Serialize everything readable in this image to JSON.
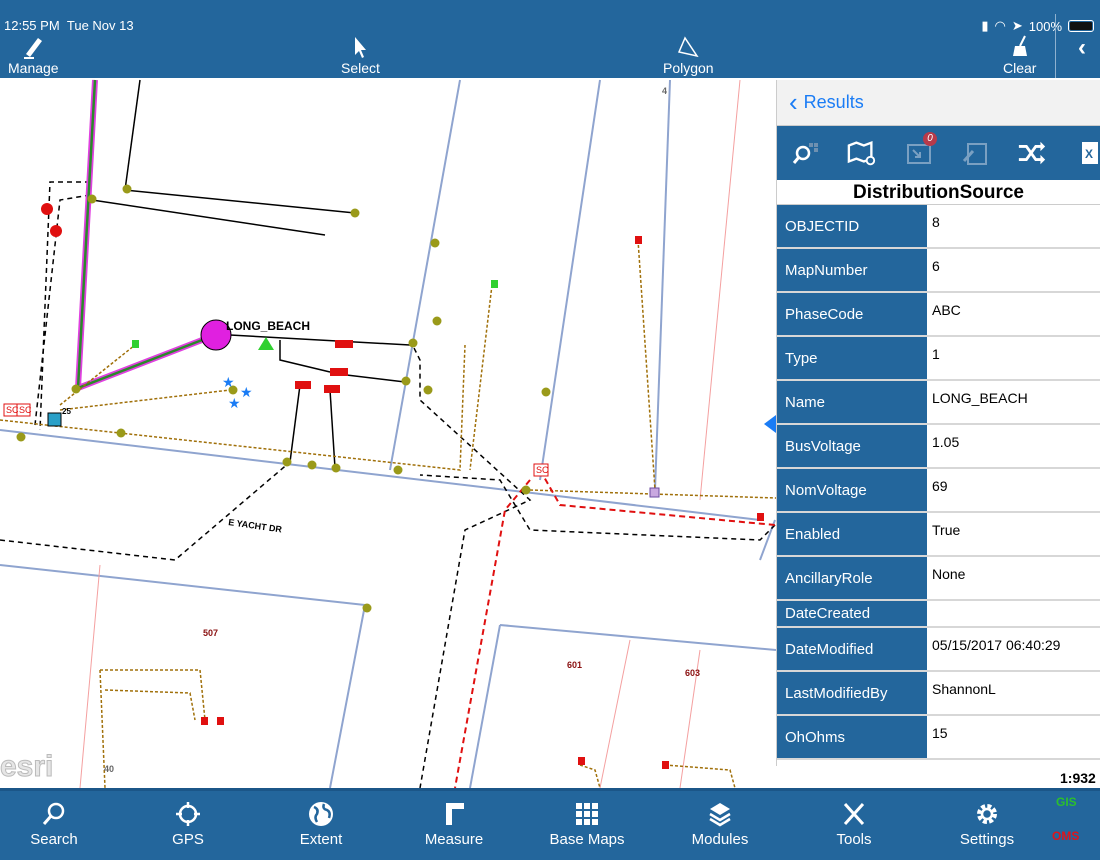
{
  "status": {
    "time": "12:55 PM",
    "date": "Tue Nov 13",
    "battery": "100%"
  },
  "toolbar": {
    "manage": "Manage",
    "select": "Select",
    "polygon": "Polygon",
    "clear": "Clear"
  },
  "map": {
    "feature_label": "LONG_BEACH",
    "street": "E YACHT DR",
    "parcels": [
      "507",
      "601",
      "603",
      "4",
      "40"
    ],
    "device_label": "25",
    "sc": "SC",
    "logo": "esri",
    "scale": "1:932"
  },
  "panel": {
    "back": "Results",
    "badge": "0",
    "tools": [
      "zoom-to-icon",
      "map-icon",
      "export-icon",
      "new-edit-icon",
      "shuffle-icon",
      "excel-icon"
    ],
    "title": "DistributionSource",
    "rows": [
      {
        "k": "OBJECTID",
        "v": "8"
      },
      {
        "k": "MapNumber",
        "v": "6"
      },
      {
        "k": "PhaseCode",
        "v": "ABC"
      },
      {
        "k": "Type",
        "v": "1"
      },
      {
        "k": "Name",
        "v": "LONG_BEACH"
      },
      {
        "k": "BusVoltage",
        "v": "1.05"
      },
      {
        "k": "NomVoltage",
        "v": "69"
      },
      {
        "k": "Enabled",
        "v": "True"
      },
      {
        "k": "AncillaryRole",
        "v": "None"
      },
      {
        "k": "DateCreated",
        "v": ""
      },
      {
        "k": "DateModified",
        "v": "05/15/2017 06:40:29"
      },
      {
        "k": "LastModifiedBy",
        "v": "ShannonL"
      },
      {
        "k": "OhOhms",
        "v": "15"
      }
    ]
  },
  "nav": {
    "search": "Search",
    "gps": "GPS",
    "extent": "Extent",
    "measure": "Measure",
    "basemaps": "Base Maps",
    "modules": "Modules",
    "tools": "Tools",
    "settings": "Settings",
    "gis": "GIS",
    "oms": "OMS"
  },
  "colors": {
    "brand": "#23669c",
    "link": "#1a7cf5",
    "gis": "#2cbf2c",
    "oms": "#e0141a"
  }
}
